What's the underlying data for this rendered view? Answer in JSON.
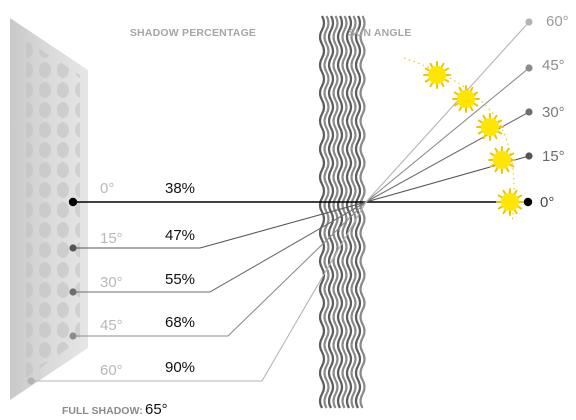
{
  "headers": {
    "shadow_percentage": "SHADOW PERCENTAGE",
    "sun_angle": "SUN ANGLE"
  },
  "rows": [
    {
      "angle_label": "0°",
      "percent_label": "38%",
      "color": "#000000"
    },
    {
      "angle_label": "15°",
      "percent_label": "47%",
      "color": "#555555"
    },
    {
      "angle_label": "30°",
      "percent_label": "55%",
      "color": "#6e6e6e"
    },
    {
      "angle_label": "45°",
      "percent_label": "68%",
      "color": "#8c8c8c"
    },
    {
      "angle_label": "60°",
      "percent_label": "90%",
      "color": "#b4b4b4"
    }
  ],
  "full_shadow": {
    "label": "FULL SHADOW:",
    "value": "65°"
  },
  "colors": {
    "sun": "#ffe600",
    "sun_rays": "#f2c400",
    "header_text": "#a6a6a6",
    "wall": "#d4d4d4",
    "fabric": "#6b6b6b"
  }
}
